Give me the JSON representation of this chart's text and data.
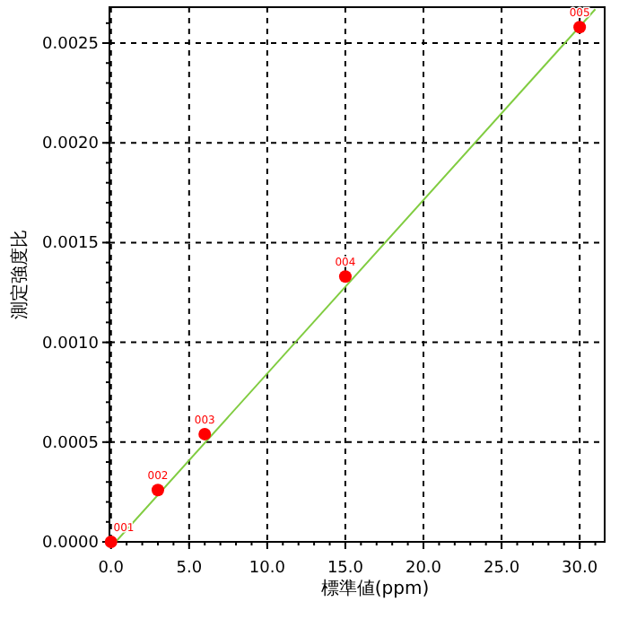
{
  "chart_data": {
    "type": "scatter",
    "xlabel": "標準値(ppm)",
    "ylabel": "測定強度比",
    "xlim": [
      -0.1,
      31.6
    ],
    "ylim": [
      0,
      0.00268
    ],
    "xticks": [
      {
        "value": 0,
        "label": "0.0"
      },
      {
        "value": 5,
        "label": "5.0"
      },
      {
        "value": 10,
        "label": "10.0"
      },
      {
        "value": 15,
        "label": "15.0"
      },
      {
        "value": 20,
        "label": "20.0"
      },
      {
        "value": 25,
        "label": "25.0"
      },
      {
        "value": 30,
        "label": "30.0"
      }
    ],
    "yticks": [
      {
        "value": 0,
        "label": "0.0000"
      },
      {
        "value": 0.0005,
        "label": "0.0005"
      },
      {
        "value": 0.001,
        "label": "0.0010"
      },
      {
        "value": 0.0015,
        "label": "0.0015"
      },
      {
        "value": 0.002,
        "label": "0.0020"
      },
      {
        "value": 0.0025,
        "label": "0.0025"
      }
    ],
    "grid": true,
    "marker": "circle",
    "series": [
      {
        "type": "line",
        "color": "#80cc40",
        "marker": "none",
        "line_style": "solid",
        "x": [
          0.3,
          31.0
        ],
        "values": [
          0,
          0.00267
        ]
      },
      {
        "color": "#ff0000",
        "x": [
          0,
          3,
          6,
          15,
          30
        ],
        "values": [
          0,
          0.00026,
          0.00054,
          0.00133,
          0.00258
        ]
      }
    ],
    "annotations": [
      {
        "text": "001",
        "x": 0,
        "y": 0
      },
      {
        "text": "002",
        "x": 3,
        "y": 0.00026
      },
      {
        "text": "003",
        "x": 6,
        "y": 0.00054
      },
      {
        "text": "004",
        "x": 15,
        "y": 0.00133
      },
      {
        "text": "005",
        "x": 30,
        "y": 0.00258
      }
    ]
  }
}
